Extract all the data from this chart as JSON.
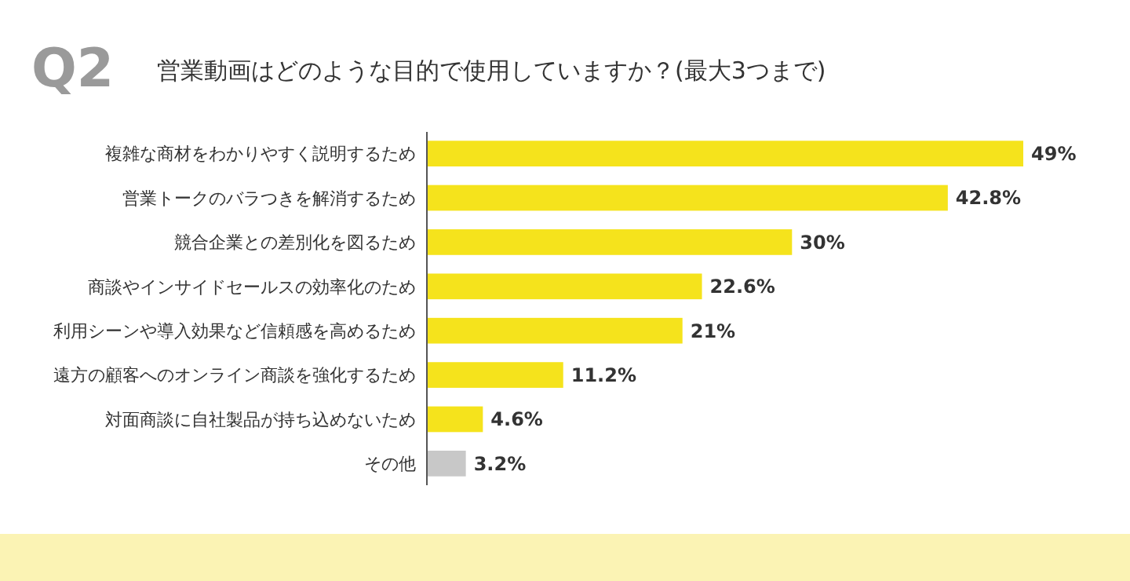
{
  "chart_data": {
    "type": "bar",
    "orientation": "horizontal",
    "title": "営業動画はどのような目的で使用していますか？(最大3つまで)",
    "annotations": [
      "Q2"
    ],
    "categories": [
      "複雑な商材をわかりやすく説明するため",
      "営業トークのバラつきを解消するため",
      "競合企業との差別化を図るため",
      "商談やインサイドセールスの効率化のため",
      "利用シーンや導入効果など信頼感を高めるため",
      "遠方の顧客へのオンライン商談を強化するため",
      "対面商談に自社製品が持ち込めないため",
      "その他"
    ],
    "values": [
      49,
      42.8,
      30,
      22.6,
      21,
      11.2,
      4.6,
      3.2
    ],
    "value_labels": [
      "49%",
      "42.8%",
      "30%",
      "22.6%",
      "21%",
      "11.2%",
      "4.6%",
      "3.2%"
    ],
    "colors": [
      "#f5e31c",
      "#f5e31c",
      "#f5e31c",
      "#f5e31c",
      "#f5e31c",
      "#f5e31c",
      "#f5e31c",
      "#c8c8c8"
    ]
  }
}
